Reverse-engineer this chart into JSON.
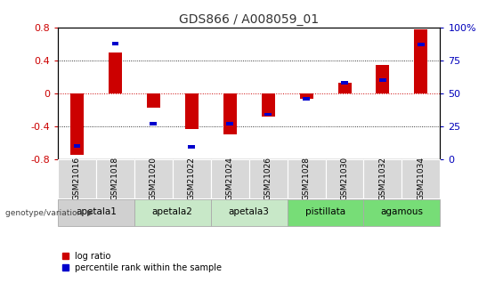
{
  "title": "GDS866 / A008059_01",
  "samples": [
    "GSM21016",
    "GSM21018",
    "GSM21020",
    "GSM21022",
    "GSM21024",
    "GSM21026",
    "GSM21028",
    "GSM21030",
    "GSM21032",
    "GSM21034"
  ],
  "log_ratio": [
    -0.75,
    0.5,
    -0.18,
    -0.44,
    -0.5,
    -0.28,
    -0.07,
    0.13,
    0.35,
    0.78
  ],
  "percentile": [
    10,
    88,
    27,
    9,
    27,
    34,
    46,
    58,
    60,
    87
  ],
  "ylim_left": [
    -0.8,
    0.8
  ],
  "ylim_right": [
    0,
    100
  ],
  "yticks_left": [
    -0.8,
    -0.4,
    0.0,
    0.4,
    0.8
  ],
  "yticks_right": [
    0,
    25,
    50,
    75,
    100
  ],
  "bar_color_red": "#cc0000",
  "bar_color_blue": "#0000cc",
  "bar_width": 0.35,
  "blue_bar_width": 0.18,
  "blue_bar_height": 0.04,
  "title_color": "#333333",
  "left_axis_color": "#cc0000",
  "right_axis_color": "#0000bb",
  "genotype_label": "genotype/variation",
  "legend_red": "log ratio",
  "legend_blue": "percentile rank within the sample",
  "group_info": [
    {
      "label": "apetala1",
      "indices": [
        0,
        1
      ],
      "color": "#d0d0d0"
    },
    {
      "label": "apetala2",
      "indices": [
        2,
        3
      ],
      "color": "#c8e8c8"
    },
    {
      "label": "apetala3",
      "indices": [
        4,
        5
      ],
      "color": "#c8e8c8"
    },
    {
      "label": "pistillata",
      "indices": [
        6,
        7
      ],
      "color": "#77dd77"
    },
    {
      "label": "agamous",
      "indices": [
        8,
        9
      ],
      "color": "#77dd77"
    }
  ]
}
